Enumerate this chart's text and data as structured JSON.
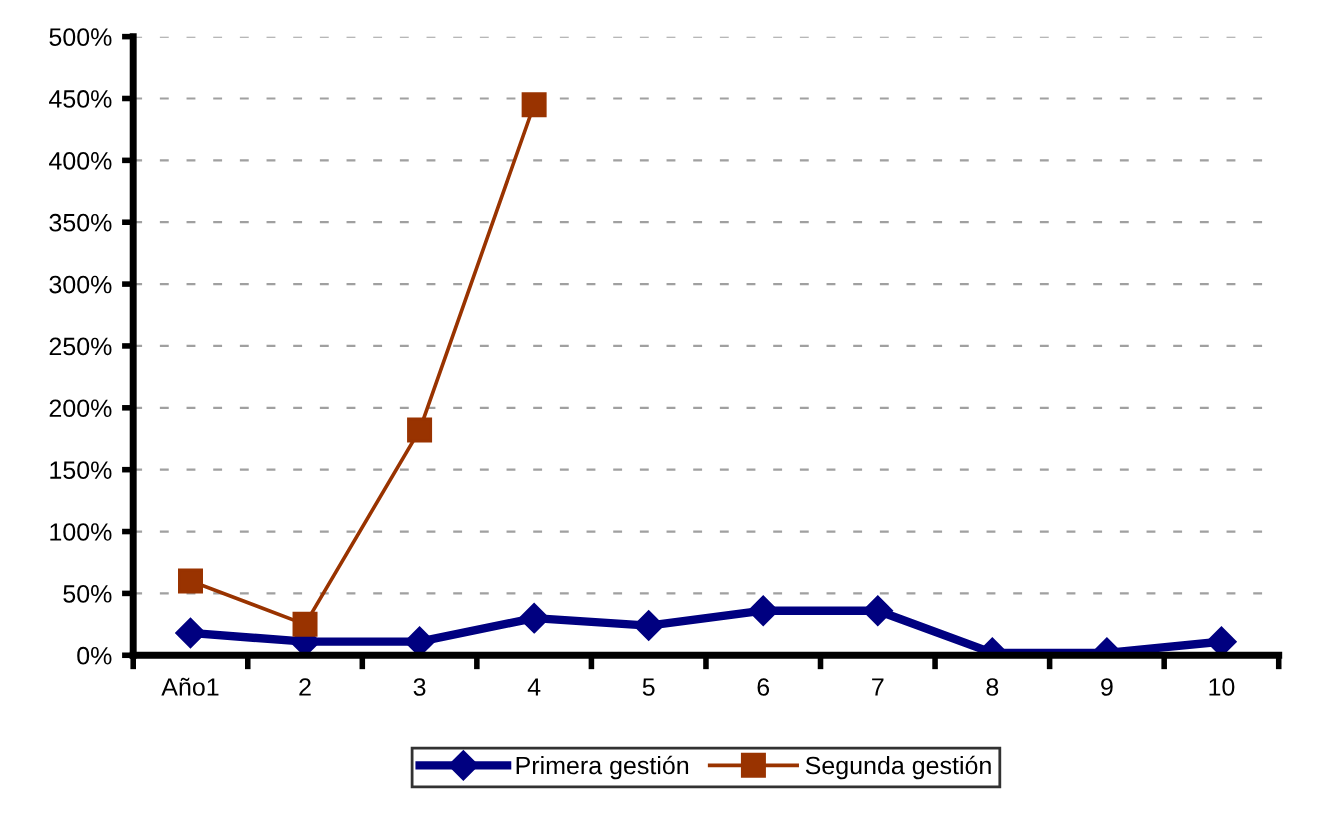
{
  "chart_data": {
    "type": "line",
    "categories": [
      "Año1",
      "2",
      "3",
      "4",
      "5",
      "6",
      "7",
      "8",
      "9",
      "10"
    ],
    "series": [
      {
        "name": "Primera gestión",
        "color": "#000080",
        "values": [
          18,
          11,
          11,
          30,
          24,
          36,
          36,
          2,
          2,
          11
        ],
        "marker": "diamond"
      },
      {
        "name": "Segunda gestión",
        "color": "#993300",
        "values": [
          60,
          25,
          182,
          445,
          null,
          null,
          null,
          null,
          null,
          null
        ],
        "marker": "square"
      }
    ],
    "ylim": [
      0,
      500
    ],
    "yticks": [
      {
        "value": 0,
        "label": "0%"
      },
      {
        "value": 50,
        "label": "50%"
      },
      {
        "value": 100,
        "label": "100%"
      },
      {
        "value": 150,
        "label": "150%"
      },
      {
        "value": 200,
        "label": "200%"
      },
      {
        "value": 250,
        "label": "250%"
      },
      {
        "value": 300,
        "label": "300%"
      },
      {
        "value": 350,
        "label": "350%"
      },
      {
        "value": 400,
        "label": "400%"
      },
      {
        "value": 450,
        "label": "450%"
      },
      {
        "value": 500,
        "label": "500%"
      }
    ],
    "grid": "y",
    "legend": "bottom",
    "line_style": "solid"
  }
}
